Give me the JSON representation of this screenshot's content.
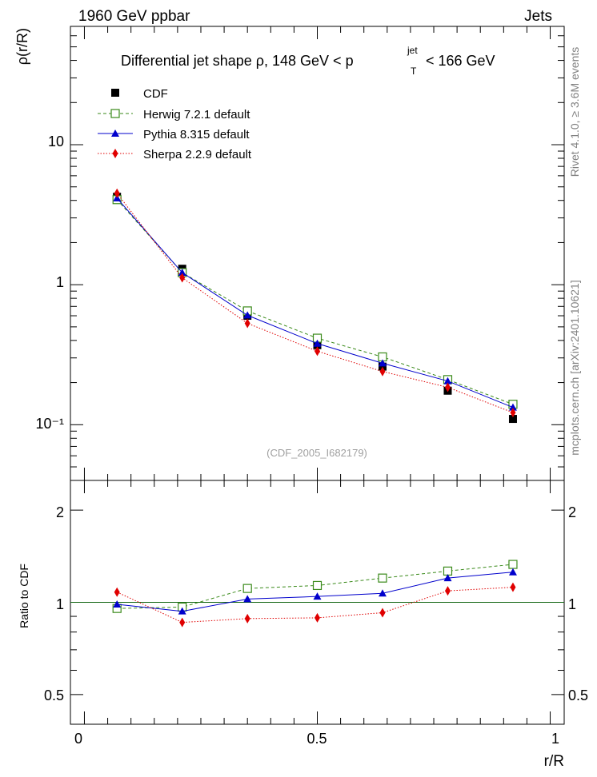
{
  "header": {
    "left": "1960 GeV ppbar",
    "right": "Jets"
  },
  "side_labels": {
    "rivet": "Rivet 4.1.0, ≥ 3.6M events",
    "mcplots": "mcplots.cern.ch [arXiv:2401.10621]"
  },
  "chart_data": [
    {
      "type": "line",
      "panel": "main",
      "title_main": "Differential jet shape  ρ, 148 GeV < p",
      "title_sup": "jet",
      "title_sub": "T",
      "title_end": "< 166 GeV",
      "ylabel": "ρ(r/R)",
      "yscale": "log",
      "ylim": [
        0.04,
        70
      ],
      "xlim": [
        -0.03,
        1.03
      ],
      "y_tick_labels": [
        "10⁻¹",
        "1",
        "10"
      ],
      "watermark": "(CDF_2005_I682179)",
      "x": [
        0.07,
        0.21,
        0.35,
        0.5,
        0.64,
        0.78,
        0.92
      ],
      "series": [
        {
          "name": "CDF",
          "color": "#000000",
          "marker": "square-filled",
          "line": "none",
          "values": [
            4.25,
            1.3,
            0.6,
            0.37,
            0.26,
            0.175,
            0.11
          ]
        },
        {
          "name": "Herwig 7.2.1 default",
          "color": "#3a8a1a",
          "marker": "square-open",
          "line": "dashed",
          "values": [
            4.05,
            1.22,
            0.65,
            0.415,
            0.305,
            0.21,
            0.14
          ]
        },
        {
          "name": "Pythia 8.315 default",
          "color": "#0000cc",
          "marker": "triangle",
          "line": "solid",
          "values": [
            4.15,
            1.22,
            0.605,
            0.38,
            0.275,
            0.205,
            0.133
          ]
        },
        {
          "name": "Sherpa 2.2.9 default",
          "color": "#e00000",
          "marker": "diamond",
          "line": "dotted",
          "values": [
            4.5,
            1.12,
            0.53,
            0.335,
            0.24,
            0.185,
            0.122
          ]
        }
      ]
    },
    {
      "type": "line",
      "panel": "ratio",
      "ylabel": "Ratio to CDF",
      "xlabel": "r/R",
      "yscale": "log",
      "ylim": [
        0.4,
        2.5
      ],
      "xlim": [
        -0.03,
        1.03
      ],
      "y_tick_labels": [
        "0.5",
        "1",
        "2"
      ],
      "x_tick_labels": [
        "0",
        "0.5",
        "1"
      ],
      "reference_line": 1.0,
      "x": [
        0.07,
        0.21,
        0.35,
        0.5,
        0.64,
        0.78,
        0.92
      ],
      "series": [
        {
          "name": "Herwig 7.2.1 default",
          "color": "#3a8a1a",
          "marker": "square-open",
          "line": "dashed",
          "values": [
            0.955,
            0.965,
            1.11,
            1.135,
            1.2,
            1.265,
            1.33
          ]
        },
        {
          "name": "Pythia 8.315 default",
          "color": "#0000cc",
          "marker": "triangle",
          "line": "solid",
          "values": [
            0.985,
            0.935,
            1.025,
            1.045,
            1.07,
            1.2,
            1.255
          ]
        },
        {
          "name": "Sherpa 2.2.9 default",
          "color": "#e00000",
          "marker": "diamond",
          "line": "dotted",
          "values": [
            1.08,
            0.86,
            0.885,
            0.89,
            0.925,
            1.09,
            1.12
          ]
        }
      ]
    }
  ]
}
